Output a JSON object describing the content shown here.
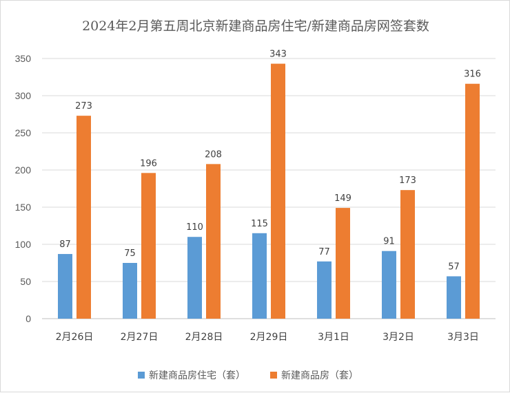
{
  "chart_data": {
    "type": "bar",
    "title": "2024年2月第五周北京新建商品房住宅/新建商品房网签套数",
    "categories": [
      "2月26日",
      "2月27日",
      "2月28日",
      "2月29日",
      "3月1日",
      "3月2日",
      "3月3日"
    ],
    "series": [
      {
        "name": "新建商品房住宅（套）",
        "color": "#5b9bd5",
        "values": [
          87,
          75,
          110,
          115,
          77,
          91,
          57
        ]
      },
      {
        "name": "新建商品房（套）",
        "color": "#ed7d31",
        "values": [
          273,
          196,
          208,
          343,
          149,
          173,
          316
        ]
      }
    ],
    "ylim": [
      0,
      350
    ],
    "yticks": [
      0,
      50,
      100,
      150,
      200,
      250,
      300,
      350
    ],
    "grid": true,
    "legend": "bottom"
  }
}
